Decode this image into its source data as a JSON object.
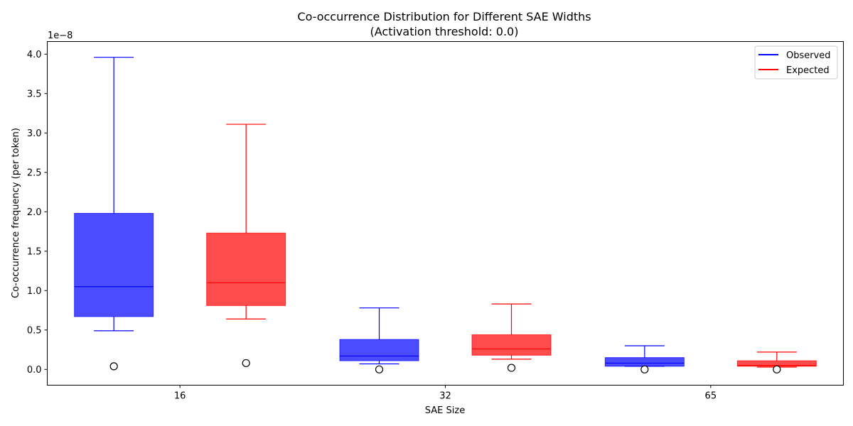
{
  "chart_data": {
    "type": "box",
    "title": "Co-occurrence Distribution for Different SAE Widths",
    "subtitle": "(Activation threshold: 0.0)",
    "xlabel": "SAE Size",
    "ylabel": "Co-occurrence frequency (per token)",
    "y_scale_label": "1e−8",
    "ylim": [
      -0.2,
      4.16
    ],
    "yticks": [
      0.0,
      0.5,
      1.0,
      1.5,
      2.0,
      2.5,
      3.0,
      3.5,
      4.0
    ],
    "ytick_labels": [
      "0.0",
      "0.5",
      "1.0",
      "1.5",
      "2.0",
      "2.5",
      "3.0",
      "3.5",
      "4.0"
    ],
    "categories": [
      "16",
      "32",
      "65"
    ],
    "legend": {
      "placement": "top-right",
      "entries": [
        "Observed",
        "Expected"
      ]
    },
    "series": [
      {
        "name": "Observed",
        "color": "#0000ff",
        "fill": "#4a4aff",
        "boxes": [
          {
            "whislo": 0.49,
            "q1": 0.67,
            "med": 1.05,
            "q3": 1.98,
            "whishi": 3.96,
            "fliers": [
              0.04
            ]
          },
          {
            "whislo": 0.07,
            "q1": 0.11,
            "med": 0.17,
            "q3": 0.38,
            "whishi": 0.78,
            "fliers": [
              0.0
            ]
          },
          {
            "whislo": 0.04,
            "q1": 0.04,
            "med": 0.08,
            "q3": 0.15,
            "whishi": 0.3,
            "fliers": [
              0.0
            ]
          }
        ]
      },
      {
        "name": "Expected",
        "color": "#ff0000",
        "fill": "#ff4a4a",
        "boxes": [
          {
            "whislo": 0.64,
            "q1": 0.81,
            "med": 1.1,
            "q3": 1.73,
            "whishi": 3.11,
            "fliers": [
              0.08
            ]
          },
          {
            "whislo": 0.13,
            "q1": 0.18,
            "med": 0.26,
            "q3": 0.44,
            "whishi": 0.83,
            "fliers": [
              0.02
            ]
          },
          {
            "whislo": 0.03,
            "q1": 0.04,
            "med": 0.05,
            "q3": 0.11,
            "whishi": 0.22,
            "fliers": [
              0.0
            ]
          }
        ]
      }
    ]
  }
}
